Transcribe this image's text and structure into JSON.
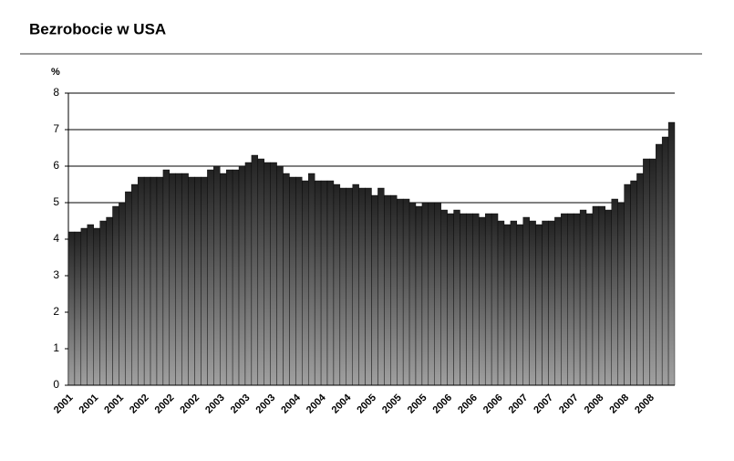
{
  "chart_data": {
    "type": "bar",
    "title": "Bezrobocie w USA",
    "y_label": "%",
    "categories": [
      "2001",
      null,
      null,
      null,
      "2001",
      null,
      null,
      null,
      "2001",
      null,
      null,
      null,
      "2002",
      null,
      null,
      null,
      "2002",
      null,
      null,
      null,
      "2002",
      null,
      null,
      null,
      "2003",
      null,
      null,
      null,
      "2003",
      null,
      null,
      null,
      "2003",
      null,
      null,
      null,
      "2004",
      null,
      null,
      null,
      "2004",
      null,
      null,
      null,
      "2004",
      null,
      null,
      null,
      "2005",
      null,
      null,
      null,
      "2005",
      null,
      null,
      null,
      "2005",
      null,
      null,
      null,
      "2006",
      null,
      null,
      null,
      "2006",
      null,
      null,
      null,
      "2006",
      null,
      null,
      null,
      "2007",
      null,
      null,
      null,
      "2007",
      null,
      null,
      null,
      "2007",
      null,
      null,
      null,
      "2008",
      null,
      null,
      null,
      "2008",
      null,
      null,
      null,
      "2008",
      null,
      null,
      null
    ],
    "values": [
      4.2,
      4.2,
      4.3,
      4.4,
      4.3,
      4.5,
      4.6,
      4.9,
      5.0,
      5.3,
      5.5,
      5.7,
      5.7,
      5.7,
      5.7,
      5.9,
      5.8,
      5.8,
      5.8,
      5.7,
      5.7,
      5.7,
      5.9,
      6.0,
      5.8,
      5.9,
      5.9,
      6.0,
      6.1,
      6.3,
      6.2,
      6.1,
      6.1,
      6.0,
      5.8,
      5.7,
      5.7,
      5.6,
      5.8,
      5.6,
      5.6,
      5.6,
      5.5,
      5.4,
      5.4,
      5.5,
      5.4,
      5.4,
      5.2,
      5.4,
      5.2,
      5.2,
      5.1,
      5.1,
      5.0,
      4.9,
      5.0,
      5.0,
      5.0,
      4.8,
      4.7,
      4.8,
      4.7,
      4.7,
      4.7,
      4.6,
      4.7,
      4.7,
      4.5,
      4.4,
      4.5,
      4.4,
      4.6,
      4.5,
      4.4,
      4.5,
      4.5,
      4.6,
      4.7,
      4.7,
      4.7,
      4.8,
      4.7,
      4.9,
      4.9,
      4.8,
      5.1,
      5.0,
      5.5,
      5.6,
      5.8,
      6.2,
      6.2,
      6.6,
      6.8,
      7.2
    ],
    "color": "#222222",
    "ylim": [
      0,
      8
    ],
    "yticks": [
      0,
      1,
      2,
      3,
      4,
      5,
      6,
      7,
      8
    ],
    "grid": true
  }
}
